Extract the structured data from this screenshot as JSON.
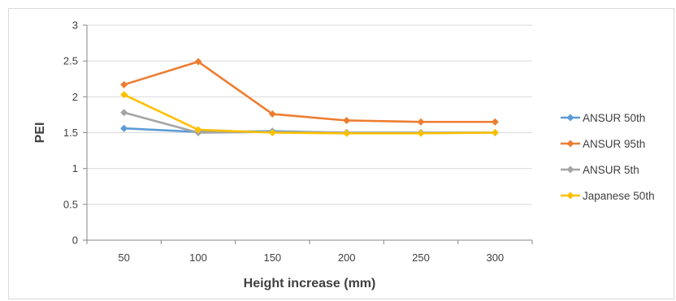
{
  "chart_data": {
    "type": "line",
    "xlabel": "Height increase (mm)",
    "ylabel": "PEI",
    "categories": [
      "50",
      "100",
      "150",
      "200",
      "250",
      "300"
    ],
    "ylim": [
      0,
      3
    ],
    "yticks": [
      "0",
      "0.5",
      "1",
      "1.5",
      "2",
      "2.5",
      "3"
    ],
    "grid": "horizontal",
    "legend_position": "right",
    "series": [
      {
        "name": "ANSUR 50th",
        "color": "#5B9BD5",
        "values": [
          1.56,
          1.51,
          1.52,
          1.5,
          1.5,
          1.5
        ]
      },
      {
        "name": "ANSUR 95th",
        "color": "#ED7D31",
        "values": [
          2.17,
          2.49,
          1.76,
          1.67,
          1.65,
          1.65
        ]
      },
      {
        "name": "ANSUR 5th",
        "color": "#A5A5A5",
        "values": [
          1.78,
          1.5,
          1.51,
          1.5,
          1.5,
          1.5
        ]
      },
      {
        "name": "Japanese 50th",
        "color": "#FFC000",
        "values": [
          2.03,
          1.54,
          1.5,
          1.49,
          1.49,
          1.5
        ]
      }
    ]
  }
}
